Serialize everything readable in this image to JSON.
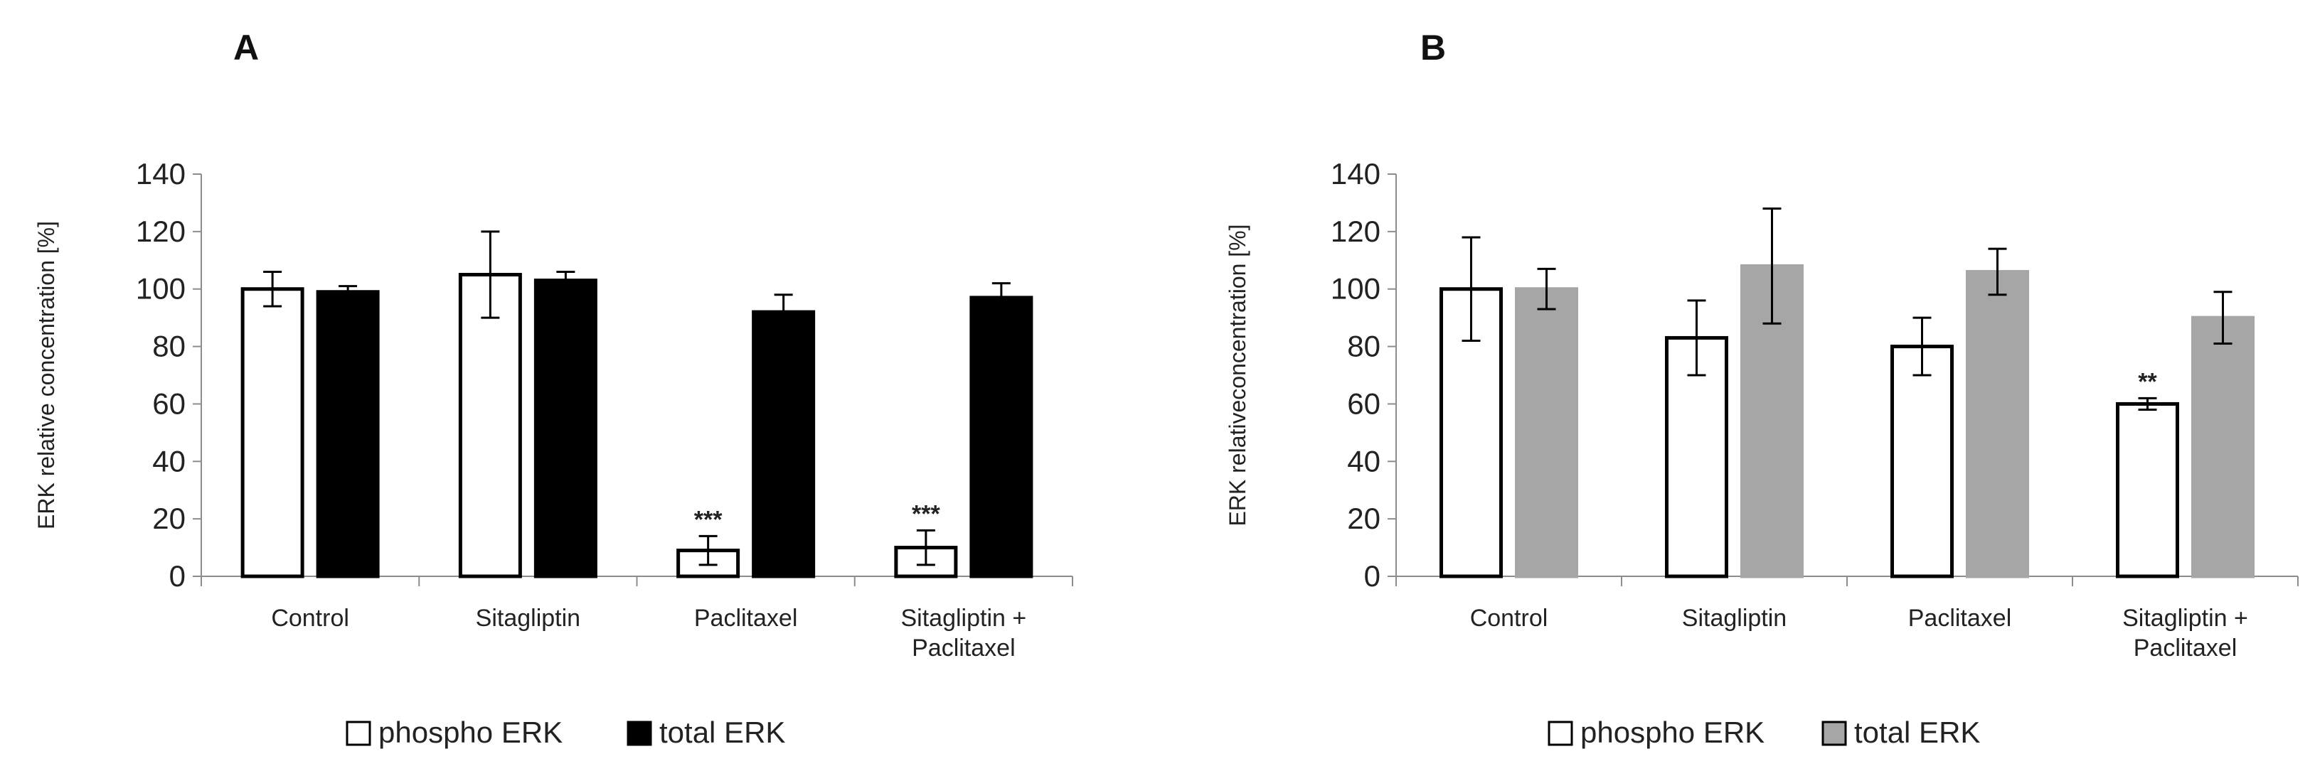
{
  "chart_data": [
    {
      "type": "bar",
      "panel_label": "A",
      "ylabel": "ERK relative concentration [%]",
      "ylim": [
        0,
        140
      ],
      "yticks": [
        0,
        20,
        40,
        60,
        80,
        100,
        120,
        140
      ],
      "categories": [
        [
          "Control"
        ],
        [
          "Sitagliptin"
        ],
        [
          "Paclitaxel"
        ],
        [
          "Sitagliptin +",
          "Paclitaxel"
        ]
      ],
      "series": [
        {
          "name": "phospho ERK",
          "fill": "#ffffff",
          "stroke": "#000000",
          "values": [
            100,
            105,
            9,
            10
          ],
          "errors": [
            6,
            15,
            5,
            6
          ],
          "significance": [
            "",
            "",
            "***",
            "***"
          ]
        },
        {
          "name": "total ERK",
          "fill": "#000000",
          "stroke": "#000000",
          "values": [
            99,
            103,
            92,
            97
          ],
          "errors": [
            2,
            3,
            6,
            5
          ],
          "significance": [
            "",
            "",
            "",
            ""
          ]
        }
      ],
      "legend": [
        {
          "label": "phospho ERK",
          "fill": "#ffffff"
        },
        {
          "label": "total ERK",
          "fill": "#000000"
        }
      ],
      "legend_position": "bottom"
    },
    {
      "type": "bar",
      "panel_label": "B",
      "ylabel": "ERK relativeconcentration [%]",
      "ylim": [
        0,
        140
      ],
      "yticks": [
        0,
        20,
        40,
        60,
        80,
        100,
        120,
        140
      ],
      "categories": [
        [
          "Control"
        ],
        [
          "Sitagliptin"
        ],
        [
          "Paclitaxel"
        ],
        [
          "Sitagliptin +",
          "Paclitaxel"
        ]
      ],
      "series": [
        {
          "name": "phospho ERK",
          "fill": "#ffffff",
          "stroke": "#000000",
          "values": [
            100,
            83,
            80,
            60
          ],
          "errors": [
            18,
            13,
            10,
            2
          ],
          "significance": [
            "",
            "",
            "",
            "**"
          ]
        },
        {
          "name": "total ERK",
          "fill": "#a6a6a6",
          "stroke": "#a6a6a6",
          "values": [
            100,
            108,
            106,
            90
          ],
          "errors": [
            7,
            20,
            8,
            9
          ],
          "significance": [
            "",
            "",
            "",
            ""
          ]
        }
      ],
      "legend": [
        {
          "label": "phospho ERK",
          "fill": "#ffffff"
        },
        {
          "label": "total ERK",
          "fill": "#a6a6a6"
        }
      ],
      "legend_position": "bottom"
    }
  ]
}
